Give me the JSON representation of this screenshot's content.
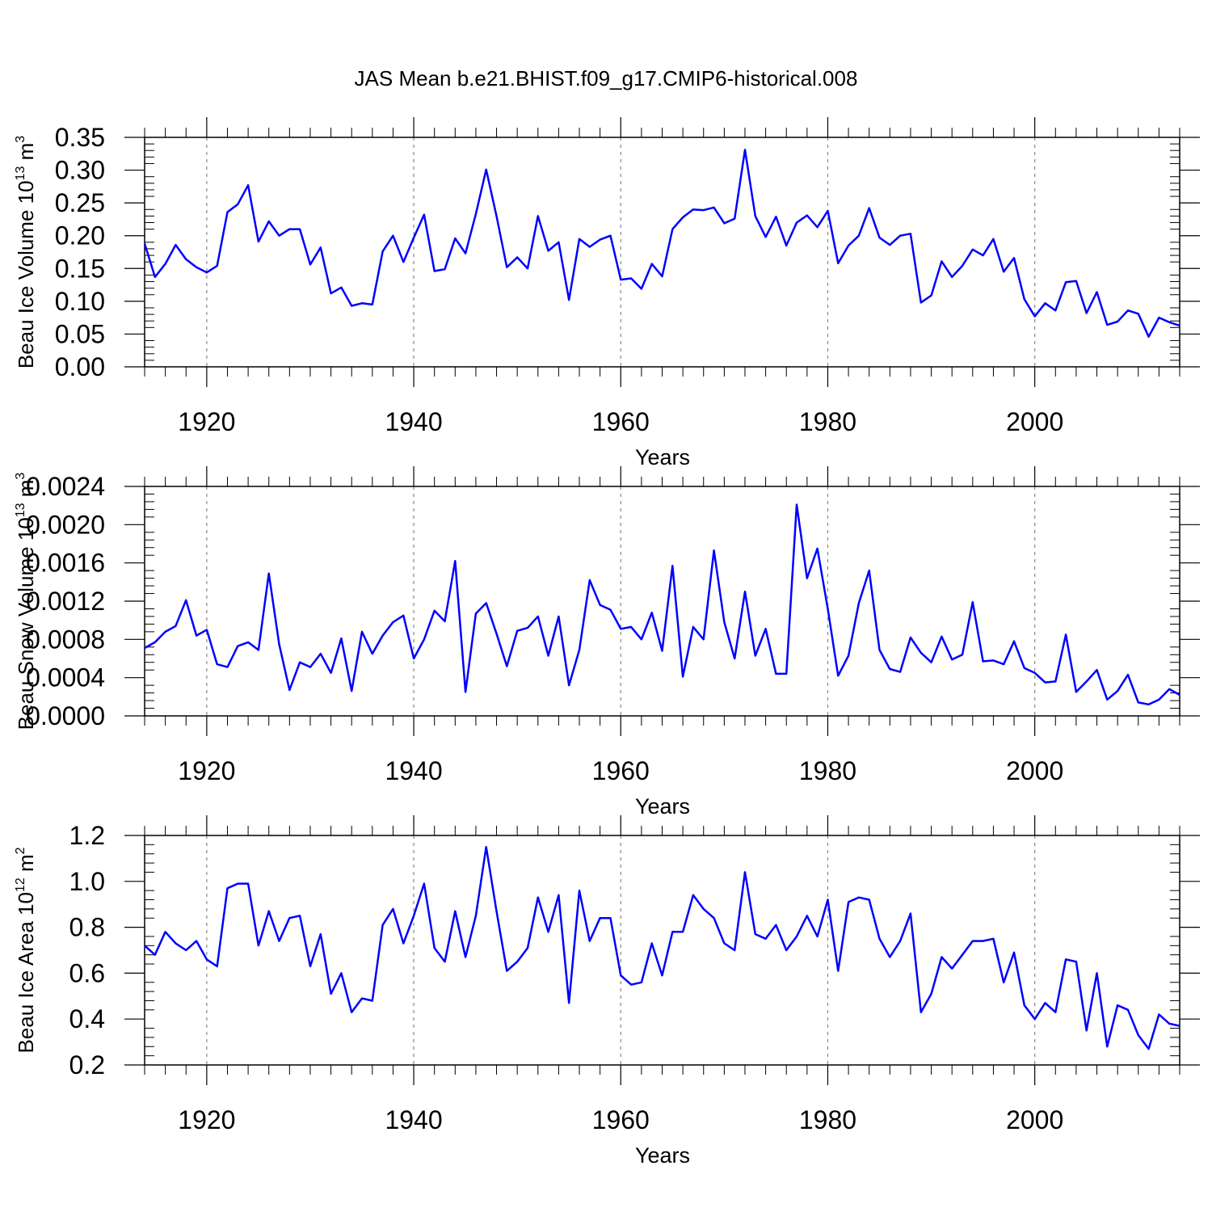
{
  "title": "JAS Mean b.e21.BHIST.f09_g17.CMIP6-historical.008",
  "colors": {
    "line": "#0000ff",
    "axis": "#000000",
    "grid": "#888888"
  },
  "chart_data": [
    {
      "type": "line",
      "ylabel": "Beau Ice Volume 10",
      "ylabel_sup": "13",
      "ylabel_unit": "m",
      "ylabel_unit_sup": "3",
      "xlabel": "Years",
      "xlim": [
        1914,
        2014
      ],
      "ylim": [
        0,
        0.35
      ],
      "xticks": [
        1920,
        1940,
        1960,
        1980,
        2000
      ],
      "yticks": [
        0.0,
        0.05,
        0.1,
        0.15,
        0.2,
        0.25,
        0.3,
        0.35
      ],
      "ytick_labels": [
        "0.00",
        "0.05",
        "0.10",
        "0.15",
        "0.20",
        "0.25",
        "0.30",
        "0.35"
      ],
      "x_start": 1914,
      "values": [
        0.188,
        0.137,
        0.157,
        0.186,
        0.164,
        0.152,
        0.144,
        0.154,
        0.236,
        0.248,
        0.277,
        0.191,
        0.222,
        0.2,
        0.21,
        0.21,
        0.156,
        0.182,
        0.112,
        0.121,
        0.093,
        0.097,
        0.095,
        0.176,
        0.2,
        0.16,
        0.197,
        0.232,
        0.146,
        0.149,
        0.196,
        0.173,
        0.233,
        0.301,
        0.23,
        0.152,
        0.167,
        0.15,
        0.23,
        0.177,
        0.19,
        0.102,
        0.195,
        0.183,
        0.194,
        0.2,
        0.133,
        0.135,
        0.119,
        0.157,
        0.138,
        0.21,
        0.228,
        0.24,
        0.239,
        0.243,
        0.219,
        0.226,
        0.331,
        0.23,
        0.198,
        0.229,
        0.185,
        0.22,
        0.231,
        0.213,
        0.238,
        0.158,
        0.185,
        0.2,
        0.242,
        0.197,
        0.186,
        0.2,
        0.203,
        0.098,
        0.109,
        0.161,
        0.137,
        0.154,
        0.179,
        0.17,
        0.195,
        0.145,
        0.166,
        0.103,
        0.077,
        0.097,
        0.086,
        0.129,
        0.131,
        0.082,
        0.114,
        0.064,
        0.069,
        0.086,
        0.081,
        0.046,
        0.075,
        0.068,
        0.063
      ]
    },
    {
      "type": "line",
      "ylabel": "Beau Snow Volume 10",
      "ylabel_sup": "13",
      "ylabel_unit": "m",
      "ylabel_unit_sup": "3",
      "xlabel": "Years",
      "xlim": [
        1914,
        2014
      ],
      "ylim": [
        0,
        0.0024
      ],
      "xticks": [
        1920,
        1940,
        1960,
        1980,
        2000
      ],
      "yticks": [
        0.0,
        0.0004,
        0.0008,
        0.0012,
        0.0016,
        0.002,
        0.0024
      ],
      "ytick_labels": [
        "0.0000",
        "0.0004",
        "0.0008",
        "0.0012",
        "0.0016",
        "0.0020",
        "0.0024"
      ],
      "x_start": 1914,
      "values": [
        0.00071,
        0.00077,
        0.00088,
        0.00094,
        0.00121,
        0.00084,
        0.0009,
        0.00054,
        0.00051,
        0.00073,
        0.00077,
        0.00069,
        0.00149,
        0.00075,
        0.00027,
        0.00056,
        0.00051,
        0.00065,
        0.00045,
        0.00081,
        0.00026,
        0.00088,
        0.00065,
        0.00084,
        0.00098,
        0.00105,
        0.0006,
        0.0008,
        0.0011,
        0.00099,
        0.00162,
        0.00025,
        0.00107,
        0.00118,
        0.00086,
        0.00052,
        0.00089,
        0.00092,
        0.00104,
        0.00063,
        0.00104,
        0.00032,
        0.00069,
        0.00142,
        0.00116,
        0.00111,
        0.00091,
        0.00093,
        0.0008,
        0.00108,
        0.00068,
        0.00157,
        0.00041,
        0.00093,
        0.0008,
        0.00173,
        0.00098,
        0.0006,
        0.0013,
        0.00063,
        0.00091,
        0.00044,
        0.00044,
        0.00221,
        0.00144,
        0.00175,
        0.00112,
        0.00042,
        0.00063,
        0.00118,
        0.00152,
        0.00069,
        0.00049,
        0.00046,
        0.00082,
        0.00066,
        0.00056,
        0.00083,
        0.00059,
        0.00064,
        0.00119,
        0.00057,
        0.00058,
        0.00054,
        0.00078,
        0.0005,
        0.00045,
        0.00035,
        0.00036,
        0.00085,
        0.00025,
        0.00036,
        0.00048,
        0.00017,
        0.00026,
        0.00043,
        0.00014,
        0.00012,
        0.00017,
        0.00028,
        0.00022
      ]
    },
    {
      "type": "line",
      "ylabel": "Beau Ice Area 10",
      "ylabel_sup": "12",
      "ylabel_unit": "m",
      "ylabel_unit_sup": "2",
      "xlabel": "Years",
      "xlim": [
        1914,
        2014
      ],
      "ylim": [
        0.2,
        1.2
      ],
      "xticks": [
        1920,
        1940,
        1960,
        1980,
        2000
      ],
      "yticks": [
        0.2,
        0.4,
        0.6,
        0.8,
        1.0,
        1.2
      ],
      "ytick_labels": [
        "0.2",
        "0.4",
        "0.6",
        "0.8",
        "1.0",
        "1.2"
      ],
      "x_start": 1914,
      "values": [
        0.72,
        0.68,
        0.78,
        0.73,
        0.7,
        0.74,
        0.66,
        0.63,
        0.97,
        0.99,
        0.99,
        0.72,
        0.87,
        0.74,
        0.84,
        0.85,
        0.63,
        0.77,
        0.51,
        0.6,
        0.43,
        0.49,
        0.48,
        0.81,
        0.88,
        0.73,
        0.85,
        0.99,
        0.71,
        0.65,
        0.87,
        0.67,
        0.85,
        1.15,
        0.87,
        0.61,
        0.65,
        0.71,
        0.93,
        0.78,
        0.94,
        0.47,
        0.96,
        0.74,
        0.84,
        0.84,
        0.59,
        0.55,
        0.56,
        0.73,
        0.59,
        0.78,
        0.78,
        0.94,
        0.88,
        0.84,
        0.73,
        0.7,
        1.04,
        0.77,
        0.75,
        0.81,
        0.7,
        0.76,
        0.85,
        0.76,
        0.92,
        0.61,
        0.91,
        0.93,
        0.92,
        0.75,
        0.67,
        0.74,
        0.86,
        0.43,
        0.51,
        0.67,
        0.62,
        0.68,
        0.74,
        0.74,
        0.75,
        0.56,
        0.69,
        0.46,
        0.4,
        0.47,
        0.43,
        0.66,
        0.65,
        0.35,
        0.6,
        0.28,
        0.46,
        0.44,
        0.33,
        0.27,
        0.42,
        0.38,
        0.37
      ]
    }
  ]
}
